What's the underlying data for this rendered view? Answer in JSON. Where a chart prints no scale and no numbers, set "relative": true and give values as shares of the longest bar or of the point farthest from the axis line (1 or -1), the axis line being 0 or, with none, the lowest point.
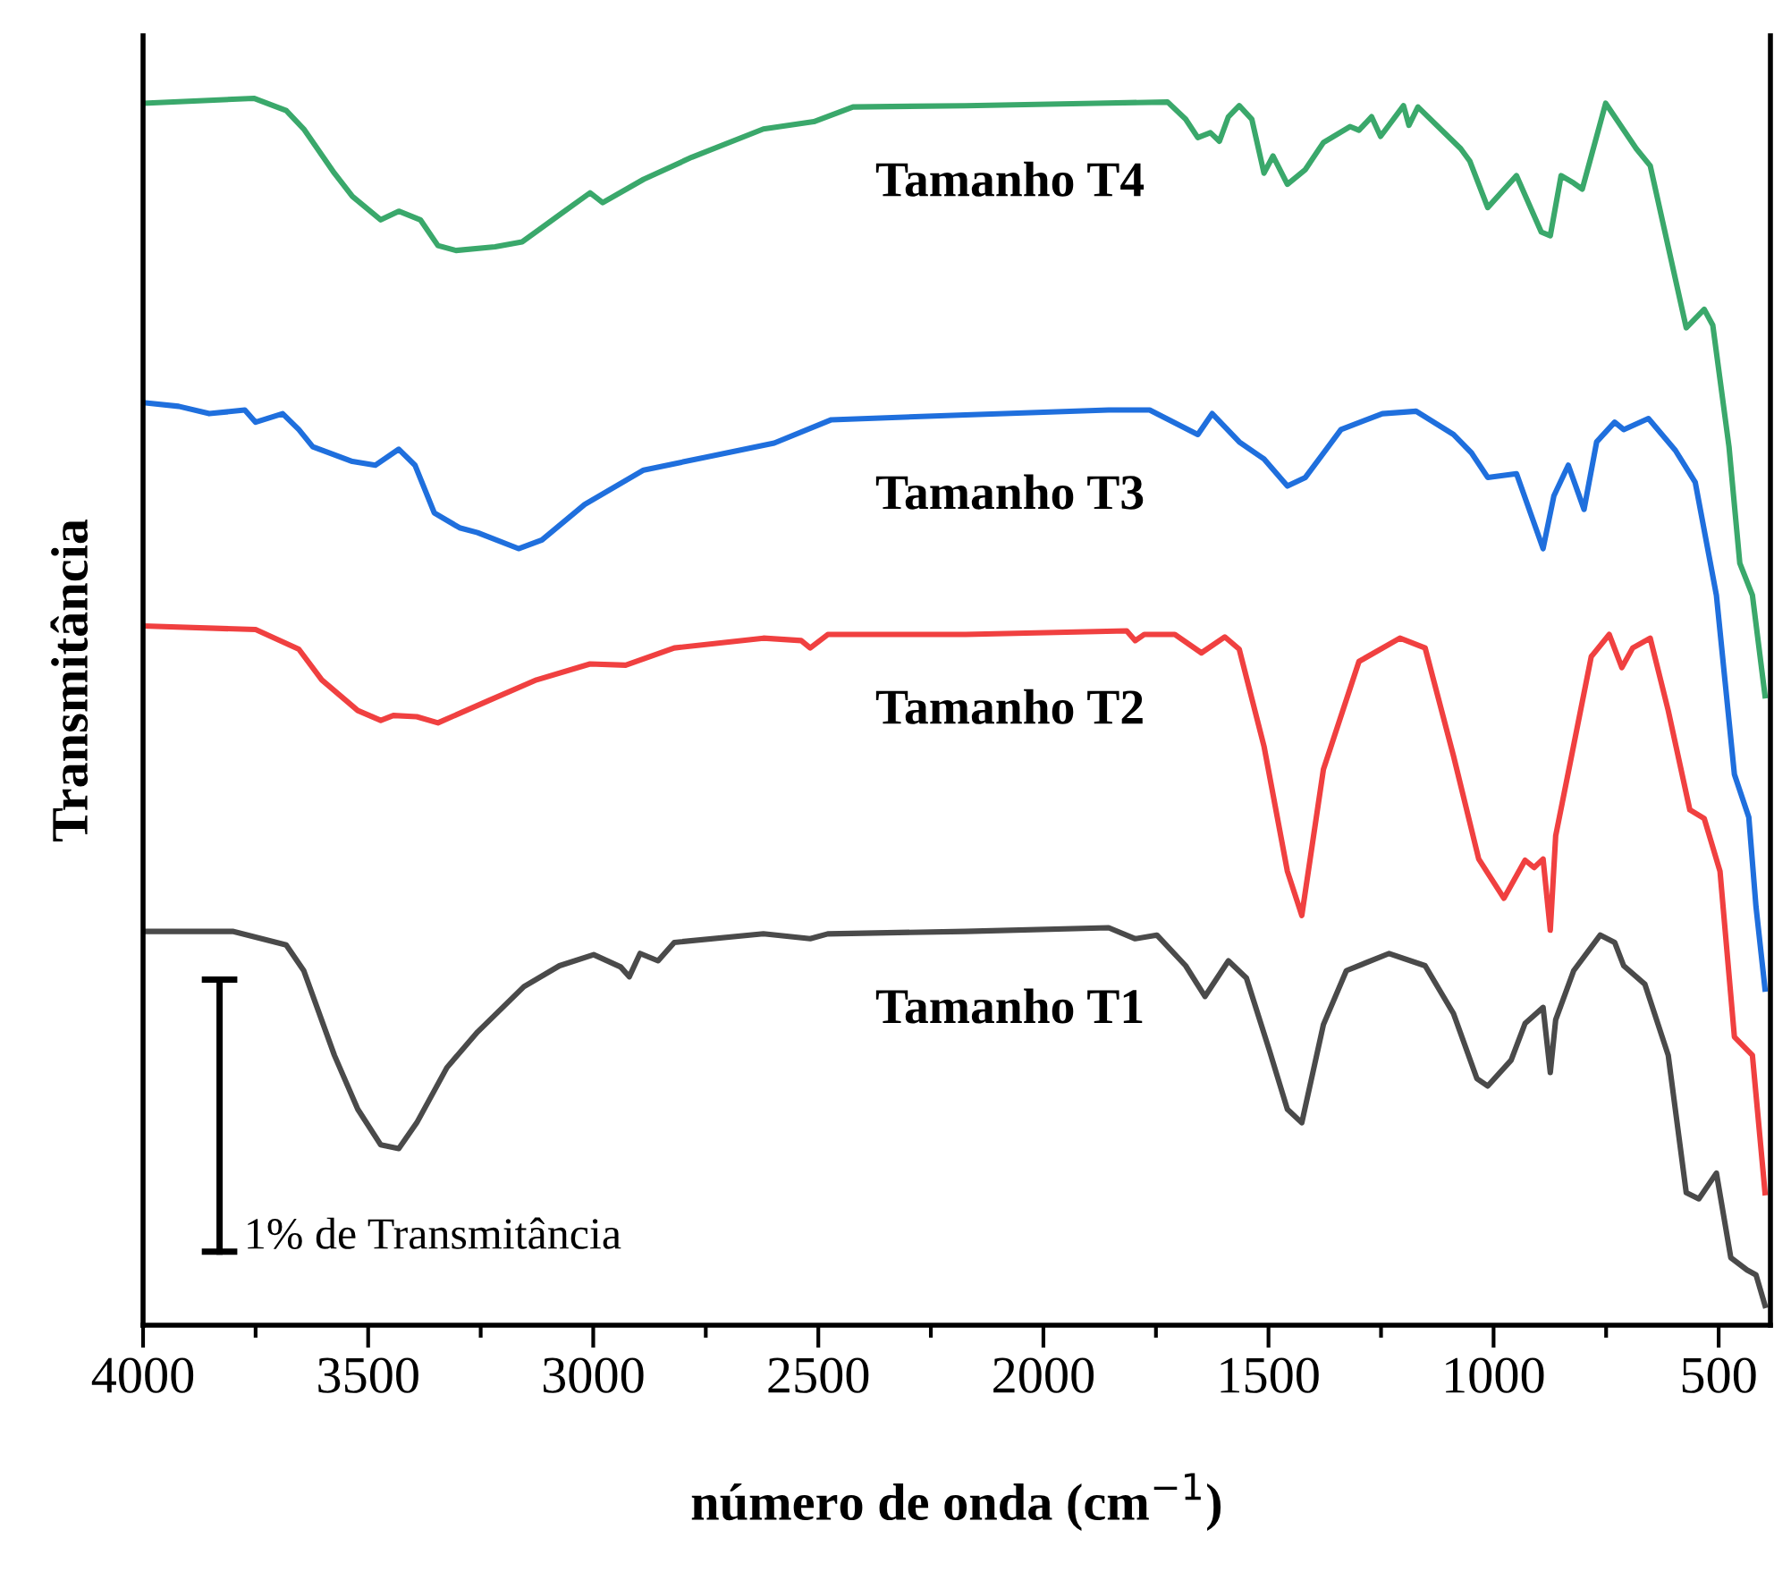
{
  "chart_data": {
    "type": "line",
    "relative": true,
    "xlabel": "número de onda (cm$^{−1}$)",
    "ylabel": "Transmitância",
    "xlim": [
      4000,
      385
    ],
    "xticks": [
      4000,
      {
        "value": 3750,
        "label": null
      },
      3500,
      {
        "value": 3250,
        "label": null
      },
      3000,
      {
        "value": 2750,
        "label": null
      },
      2500,
      {
        "value": 2250,
        "label": null
      },
      2000,
      {
        "value": 1750,
        "label": null
      },
      1500,
      {
        "value": 1250,
        "label": null
      },
      1000,
      {
        "value": 750,
        "label": null
      },
      500
    ],
    "annotations": [
      "1% de Transmitância"
    ],
    "line_style": "solid",
    "marker": "none",
    "legend": false,
    "grid": false,
    "tick_labels": "x",
    "series": [
      {
        "name": "Tamanho T1",
        "color": "#4a4a4a",
        "x": [
          4000,
          3801,
          3682,
          3643,
          3575,
          3523,
          3472,
          3432,
          3392,
          3325,
          3257,
          3154,
          3075,
          2999,
          2939,
          2920,
          2896,
          2856,
          2820,
          2622,
          2518,
          2479,
          2173,
          1855,
          1796,
          1748,
          1684,
          1641,
          1589,
          1549,
          1498,
          1458,
          1426,
          1378,
          1327,
          1232,
          1152,
          1089,
          1037,
          1013,
          961,
          930,
          890,
          874,
          862,
          822,
          763,
          731,
          711,
          664,
          612,
          572,
          544,
          505,
          473,
          437,
          417,
          397
        ],
        "values": [
          0.321,
          0.321,
          0.31,
          0.289,
          0.22,
          0.176,
          0.147,
          0.144,
          0.165,
          0.21,
          0.239,
          0.276,
          0.293,
          0.302,
          0.292,
          0.284,
          0.303,
          0.297,
          0.312,
          0.319,
          0.315,
          0.319,
          0.321,
          0.324,
          0.315,
          0.318,
          0.293,
          0.268,
          0.297,
          0.283,
          0.224,
          0.176,
          0.165,
          0.245,
          0.289,
          0.303,
          0.293,
          0.254,
          0.201,
          0.195,
          0.216,
          0.246,
          0.259,
          0.206,
          0.249,
          0.289,
          0.318,
          0.312,
          0.293,
          0.278,
          0.22,
          0.108,
          0.103,
          0.124,
          0.055,
          0.045,
          0.041,
          0.016
        ]
      },
      {
        "name": "Tamanho T2",
        "color": "#f04040",
        "x": [
          4000,
          3750,
          3654,
          3603,
          3523,
          3472,
          3444,
          3392,
          3345,
          3233,
          3126,
          3007,
          2928,
          2820,
          2622,
          2538,
          2518,
          2479,
          2173,
          1815,
          1796,
          1776,
          1708,
          1649,
          1597,
          1565,
          1510,
          1458,
          1426,
          1378,
          1299,
          1208,
          1152,
          1089,
          1033,
          977,
          930,
          910,
          890,
          874,
          862,
          830,
          783,
          743,
          715,
          691,
          652,
          612,
          564,
          532,
          497,
          465,
          425,
          397
        ],
        "values": [
          0.57,
          0.567,
          0.551,
          0.526,
          0.501,
          0.493,
          0.497,
          0.496,
          0.491,
          0.509,
          0.526,
          0.539,
          0.538,
          0.552,
          0.56,
          0.558,
          0.552,
          0.563,
          0.563,
          0.566,
          0.558,
          0.563,
          0.563,
          0.548,
          0.561,
          0.551,
          0.472,
          0.37,
          0.334,
          0.453,
          0.541,
          0.56,
          0.552,
          0.464,
          0.38,
          0.348,
          0.379,
          0.373,
          0.38,
          0.322,
          0.399,
          0.458,
          0.545,
          0.563,
          0.536,
          0.552,
          0.56,
          0.501,
          0.42,
          0.413,
          0.37,
          0.235,
          0.22,
          0.108
        ]
      },
      {
        "name": "Tamanho T3",
        "color": "#1f6fdd",
        "x": [
          4000,
          3921,
          3853,
          3774,
          3750,
          3690,
          3654,
          3623,
          3535,
          3484,
          3432,
          3396,
          3353,
          3297,
          3257,
          3166,
          3114,
          3019,
          2888,
          2598,
          2471,
          2173,
          1855,
          1764,
          1657,
          1625,
          1565,
          1510,
          1458,
          1418,
          1339,
          1247,
          1172,
          1089,
          1049,
          1013,
          949,
          890,
          866,
          834,
          799,
          771,
          731,
          711,
          656,
          596,
          552,
          505,
          465,
          433,
          417,
          397
        ],
        "values": [
          0.752,
          0.749,
          0.743,
          0.746,
          0.736,
          0.743,
          0.73,
          0.716,
          0.704,
          0.701,
          0.714,
          0.701,
          0.662,
          0.65,
          0.646,
          0.633,
          0.64,
          0.669,
          0.697,
          0.719,
          0.738,
          0.742,
          0.746,
          0.746,
          0.726,
          0.743,
          0.72,
          0.706,
          0.684,
          0.691,
          0.73,
          0.743,
          0.745,
          0.726,
          0.711,
          0.691,
          0.694,
          0.633,
          0.676,
          0.701,
          0.665,
          0.72,
          0.736,
          0.73,
          0.739,
          0.713,
          0.687,
          0.595,
          0.449,
          0.414,
          0.341,
          0.274
        ]
      },
      {
        "name": "Tamanho T4",
        "color": "#3aa86b",
        "x": [
          4000,
          3754,
          3682,
          3643,
          3575,
          3535,
          3472,
          3432,
          3384,
          3345,
          3305,
          3218,
          3158,
          3075,
          3007,
          2979,
          2888,
          2781,
          2622,
          2510,
          2423,
          2173,
          1883,
          1724,
          1684,
          1657,
          1629,
          1609,
          1589,
          1565,
          1537,
          1510,
          1490,
          1458,
          1418,
          1378,
          1319,
          1299,
          1271,
          1251,
          1200,
          1188,
          1168,
          1073,
          1053,
          1013,
          949,
          894,
          874,
          850,
          822,
          803,
          751,
          683,
          652,
          572,
          532,
          513,
          477,
          453,
          425,
          397
        ],
        "values": [
          0.996,
          1.0,
          0.99,
          0.975,
          0.939,
          0.92,
          0.901,
          0.908,
          0.901,
          0.88,
          0.876,
          0.879,
          0.883,
          0.905,
          0.923,
          0.915,
          0.934,
          0.952,
          0.975,
          0.981,
          0.993,
          0.994,
          0.996,
          0.997,
          0.983,
          0.968,
          0.972,
          0.965,
          0.985,
          0.994,
          0.983,
          0.939,
          0.953,
          0.93,
          0.942,
          0.964,
          0.977,
          0.974,
          0.985,
          0.969,
          0.994,
          0.978,
          0.993,
          0.959,
          0.949,
          0.911,
          0.937,
          0.891,
          0.888,
          0.937,
          0.931,
          0.926,
          0.996,
          0.959,
          0.945,
          0.813,
          0.828,
          0.815,
          0.716,
          0.621,
          0.595,
          0.513
        ]
      }
    ]
  }
}
